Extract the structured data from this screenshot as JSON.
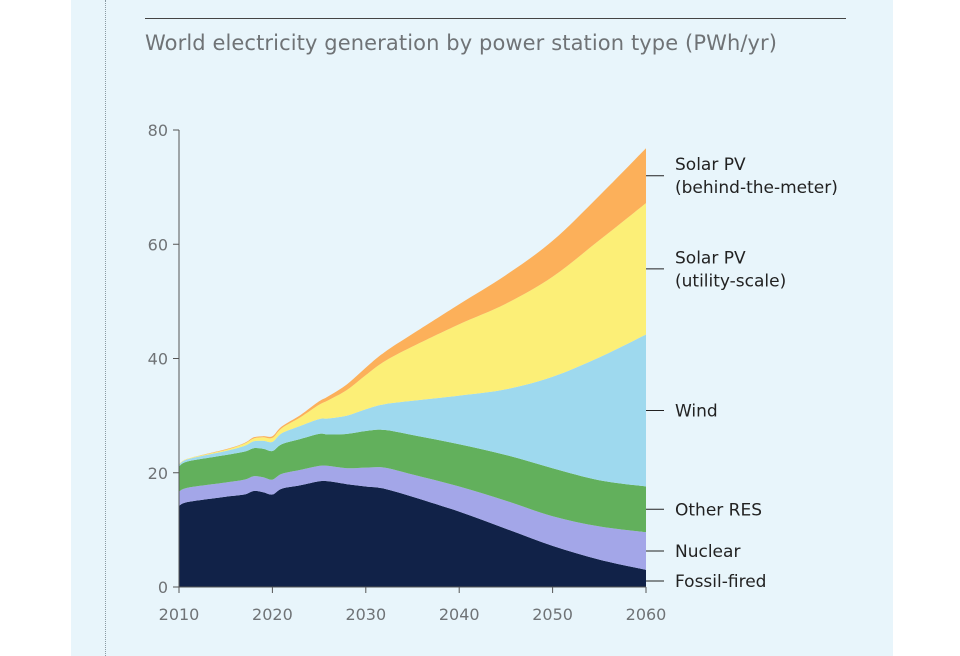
{
  "chart_data": {
    "type": "area",
    "title": "World electricity generation by power station type (PWh/yr)",
    "xlabel": "",
    "ylabel": "",
    "xlim": [
      2010,
      2060
    ],
    "ylim": [
      0,
      80
    ],
    "x_ticks": [
      2010,
      2020,
      2030,
      2040,
      2050,
      2060
    ],
    "y_ticks": [
      0,
      20,
      40,
      60,
      80
    ],
    "stacked": true,
    "grid": false,
    "legend": "right-side labels",
    "x": [
      2010,
      2011,
      2015,
      2017,
      2018,
      2019,
      2020,
      2021,
      2023,
      2025,
      2026,
      2028,
      2030,
      2032,
      2035,
      2040,
      2045,
      2050,
      2055,
      2060
    ],
    "series": [
      {
        "name": "Fossil-fired",
        "label_lines": [
          "Fossil-fired"
        ],
        "color": "#112248",
        "values": [
          14.2,
          14.9,
          15.8,
          16.2,
          16.8,
          16.6,
          16.2,
          17.2,
          17.8,
          18.5,
          18.5,
          18.0,
          17.6,
          17.2,
          15.8,
          13.2,
          10.2,
          7.2,
          4.8,
          3.0
        ]
      },
      {
        "name": "Nuclear",
        "label_lines": [
          "Nuclear"
        ],
        "color": "#a3a6e8",
        "values": [
          2.5,
          2.5,
          2.5,
          2.6,
          2.6,
          2.6,
          2.6,
          2.6,
          2.7,
          2.7,
          2.7,
          2.8,
          3.3,
          3.7,
          3.9,
          4.4,
          4.9,
          5.2,
          5.8,
          6.6
        ]
      },
      {
        "name": "Other RES",
        "label_lines": [
          "Other RES"
        ],
        "color": "#62b05c",
        "values": [
          4.4,
          4.6,
          4.8,
          4.9,
          4.9,
          5.0,
          5.0,
          5.2,
          5.4,
          5.6,
          5.5,
          6.0,
          6.4,
          6.6,
          6.9,
          7.4,
          8.0,
          8.4,
          8.1,
          8.0
        ]
      },
      {
        "name": "Wind",
        "label_lines": [
          "Wind"
        ],
        "color": "#9ed9ee",
        "values": [
          0.3,
          0.4,
          0.7,
          1.0,
          1.2,
          1.4,
          1.6,
          1.9,
          2.3,
          2.6,
          2.8,
          3.2,
          3.8,
          4.5,
          6.0,
          8.5,
          11.5,
          16.0,
          21.5,
          26.6
        ]
      },
      {
        "name": "Solar PV (utility-scale)",
        "label_lines": [
          "Solar PV",
          "(utility-scale)"
        ],
        "color": "#fcef77",
        "values": [
          0.1,
          0.1,
          0.2,
          0.4,
          0.5,
          0.6,
          0.7,
          0.9,
          1.5,
          2.5,
          3.2,
          4.5,
          6.0,
          7.5,
          9.5,
          12.5,
          15.0,
          17.5,
          20.5,
          23.0
        ]
      },
      {
        "name": "Solar PV (behind-the-meter)",
        "label_lines": [
          "Solar PV",
          "(behind-the-meter)"
        ],
        "color": "#fcb05a",
        "values": [
          0.0,
          0.0,
          0.1,
          0.1,
          0.2,
          0.2,
          0.3,
          0.3,
          0.4,
          0.6,
          0.7,
          1.0,
          1.3,
          1.6,
          2.2,
          3.5,
          5.0,
          6.3,
          7.8,
          9.6
        ]
      }
    ]
  }
}
